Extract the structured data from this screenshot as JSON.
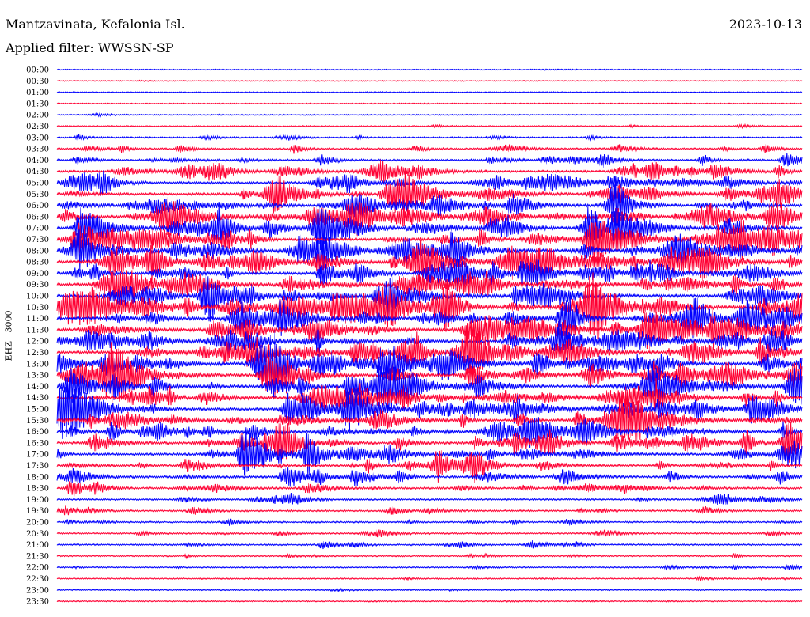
{
  "header": {
    "station": "Mantzavinata, Kefalonia Isl.",
    "filter": "Applied filter: WWSSN-SP",
    "date": "2023-10-13"
  },
  "channel_label": "EHZ - 3000",
  "colors": {
    "even": "#0000ff",
    "odd": "#ff0033"
  },
  "chart_data": {
    "type": "line",
    "description_of_rows": "helicorder",
    "rows": [
      {
        "label": "00:00",
        "activity": 0.05
      },
      {
        "label": "00:30",
        "activity": 0.02
      },
      {
        "label": "01:00",
        "activity": 0.04
      },
      {
        "label": "01:30",
        "activity": 0.05
      },
      {
        "label": "02:00",
        "activity": 0.06
      },
      {
        "label": "02:30",
        "activity": 0.12
      },
      {
        "label": "03:00",
        "activity": 0.25
      },
      {
        "label": "03:30",
        "activity": 0.35
      },
      {
        "label": "04:00",
        "activity": 0.5
      },
      {
        "label": "04:30",
        "activity": 0.6
      },
      {
        "label": "05:00",
        "activity": 0.7
      },
      {
        "label": "05:30",
        "activity": 0.75
      },
      {
        "label": "06:00",
        "activity": 0.8
      },
      {
        "label": "06:30",
        "activity": 0.85
      },
      {
        "label": "07:00",
        "activity": 0.85
      },
      {
        "label": "07:30",
        "activity": 0.9
      },
      {
        "label": "08:00",
        "activity": 0.9
      },
      {
        "label": "08:30",
        "activity": 0.9
      },
      {
        "label": "09:00",
        "activity": 0.9
      },
      {
        "label": "09:30",
        "activity": 0.9
      },
      {
        "label": "10:00",
        "activity": 0.95
      },
      {
        "label": "10:30",
        "activity": 0.95
      },
      {
        "label": "11:00",
        "activity": 0.95
      },
      {
        "label": "11:30",
        "activity": 0.95
      },
      {
        "label": "12:00",
        "activity": 0.95
      },
      {
        "label": "12:30",
        "activity": 0.95
      },
      {
        "label": "13:00",
        "activity": 0.95
      },
      {
        "label": "13:30",
        "activity": 0.95
      },
      {
        "label": "14:00",
        "activity": 0.9
      },
      {
        "label": "14:30",
        "activity": 0.9
      },
      {
        "label": "15:00",
        "activity": 0.9
      },
      {
        "label": "15:30",
        "activity": 0.85
      },
      {
        "label": "16:00",
        "activity": 0.85
      },
      {
        "label": "16:30",
        "activity": 0.75
      },
      {
        "label": "17:00",
        "activity": 0.7
      },
      {
        "label": "17:30",
        "activity": 0.65
      },
      {
        "label": "18:00",
        "activity": 0.6
      },
      {
        "label": "18:30",
        "activity": 0.5
      },
      {
        "label": "19:00",
        "activity": 0.35
      },
      {
        "label": "19:30",
        "activity": 0.35
      },
      {
        "label": "20:00",
        "activity": 0.3
      },
      {
        "label": "20:30",
        "activity": 0.3
      },
      {
        "label": "21:00",
        "activity": 0.3
      },
      {
        "label": "21:30",
        "activity": 0.22
      },
      {
        "label": "22:00",
        "activity": 0.2
      },
      {
        "label": "22:30",
        "activity": 0.15
      },
      {
        "label": "23:00",
        "activity": 0.1
      },
      {
        "label": "23:30",
        "activity": 0.12
      }
    ]
  }
}
